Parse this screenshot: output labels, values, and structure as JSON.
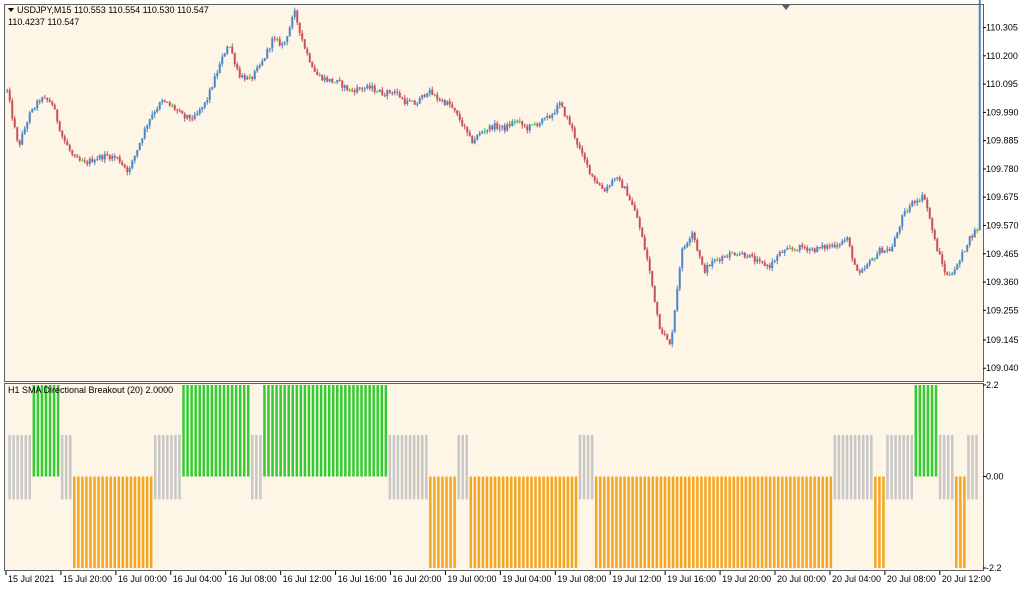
{
  "colors": {
    "background": "#fdf5e6",
    "frame": "#606060",
    "bull_candle": "#4a86c8",
    "bear_candle": "#c8505a",
    "doji_candle": "#33cc33",
    "hist_green": "#33cc33",
    "hist_orange": "#f5a623",
    "hist_gray": "#c8c8c8"
  },
  "main_header": {
    "arrow_icon": "triangle-down-icon",
    "line1": "USDJPY,M15  110.553 110.554 110.530 110.547",
    "line2": "110.4237     110.547"
  },
  "indicator_header": "H1 SMA Directional Breakout (20) 2.0000",
  "chart_data": [
    {
      "type": "candlestick",
      "symbol": "USDJPY",
      "timeframe": "M15",
      "ohlc_header": {
        "open": 110.553,
        "high": 110.554,
        "low": 110.53,
        "close": 110.547
      },
      "ylim": [
        109.0,
        110.385
      ],
      "yticks": [
        "110.305",
        "110.200",
        "110.095",
        "109.990",
        "109.885",
        "109.780",
        "109.675",
        "109.570",
        "109.465",
        "109.360",
        "109.255",
        "109.145",
        "109.040"
      ],
      "xticks": [
        "15 Jul 2021",
        "15 Jul 20:00",
        "16 Jul 00:00",
        "16 Jul 04:00",
        "16 Jul 08:00",
        "16 Jul 12:00",
        "16 Jul 16:00",
        "16 Jul 20:00",
        "19 Jul 00:00",
        "19 Jul 04:00",
        "19 Jul 08:00",
        "19 Jul 12:00",
        "19 Jul 16:00",
        "19 Jul 20:00",
        "20 Jul 00:00",
        "20 Jul 04:00",
        "20 Jul 08:00",
        "20 Jul 12:00"
      ],
      "close_path": [
        110.07,
        109.86,
        109.98,
        110.04,
        110.03,
        109.9,
        109.82,
        109.8,
        109.82,
        109.83,
        109.82,
        109.77,
        109.88,
        109.98,
        110.03,
        110.01,
        109.97,
        109.97,
        110.03,
        110.14,
        110.25,
        110.13,
        110.11,
        110.17,
        110.26,
        110.24,
        110.36,
        110.22,
        110.13,
        110.11,
        110.1,
        110.07,
        110.08,
        110.08,
        110.06,
        110.07,
        110.03,
        110.02,
        110.07,
        110.04,
        110.02,
        109.96,
        109.88,
        109.92,
        109.94,
        109.93,
        109.96,
        109.93,
        109.95,
        109.97,
        110.02,
        109.94,
        109.83,
        109.75,
        109.7,
        109.75,
        109.7,
        109.6,
        109.43,
        109.2,
        109.12,
        109.47,
        109.55,
        109.4,
        109.44,
        109.46,
        109.47,
        109.46,
        109.43,
        109.42,
        109.47,
        109.48,
        109.49,
        109.48,
        109.49,
        109.5,
        109.52,
        109.38,
        109.43,
        109.48,
        109.48,
        109.6,
        109.66,
        109.68,
        109.5,
        109.38,
        109.42,
        109.52,
        109.57
      ],
      "volatility": 0.022,
      "bars_per_px": 0.4
    },
    {
      "type": "histogram",
      "name": "H1 SMA Directional Breakout (20) 2.0000",
      "params": {
        "period": 20,
        "multiplier": 2.0
      },
      "ylim": [
        -2.2,
        2.2
      ],
      "yticks": [
        "2.2",
        "0.00",
        "-2.2"
      ],
      "levels": {
        "green": 2.2,
        "orange": -2.2,
        "gray": 1.0,
        "gray_low": -0.55
      },
      "state_segments": [
        {
          "state": "gray",
          "bars": 6
        },
        {
          "state": "green",
          "bars": 7
        },
        {
          "state": "gray",
          "bars": 3
        },
        {
          "state": "orange",
          "bars": 20
        },
        {
          "state": "gray",
          "bars": 7
        },
        {
          "state": "green",
          "bars": 17
        },
        {
          "state": "gray",
          "bars": 3
        },
        {
          "state": "green",
          "bars": 31
        },
        {
          "state": "gray",
          "bars": 10
        },
        {
          "state": "orange",
          "bars": 7
        },
        {
          "state": "gray",
          "bars": 3
        },
        {
          "state": "orange",
          "bars": 27
        },
        {
          "state": "gray",
          "bars": 4
        },
        {
          "state": "orange",
          "bars": 59
        },
        {
          "state": "gray",
          "bars": 10
        },
        {
          "state": "orange",
          "bars": 3
        },
        {
          "state": "gray",
          "bars": 7
        },
        {
          "state": "green",
          "bars": 6
        },
        {
          "state": "gray",
          "bars": 4
        },
        {
          "state": "orange",
          "bars": 3
        },
        {
          "state": "gray",
          "bars": 3
        }
      ]
    }
  ]
}
